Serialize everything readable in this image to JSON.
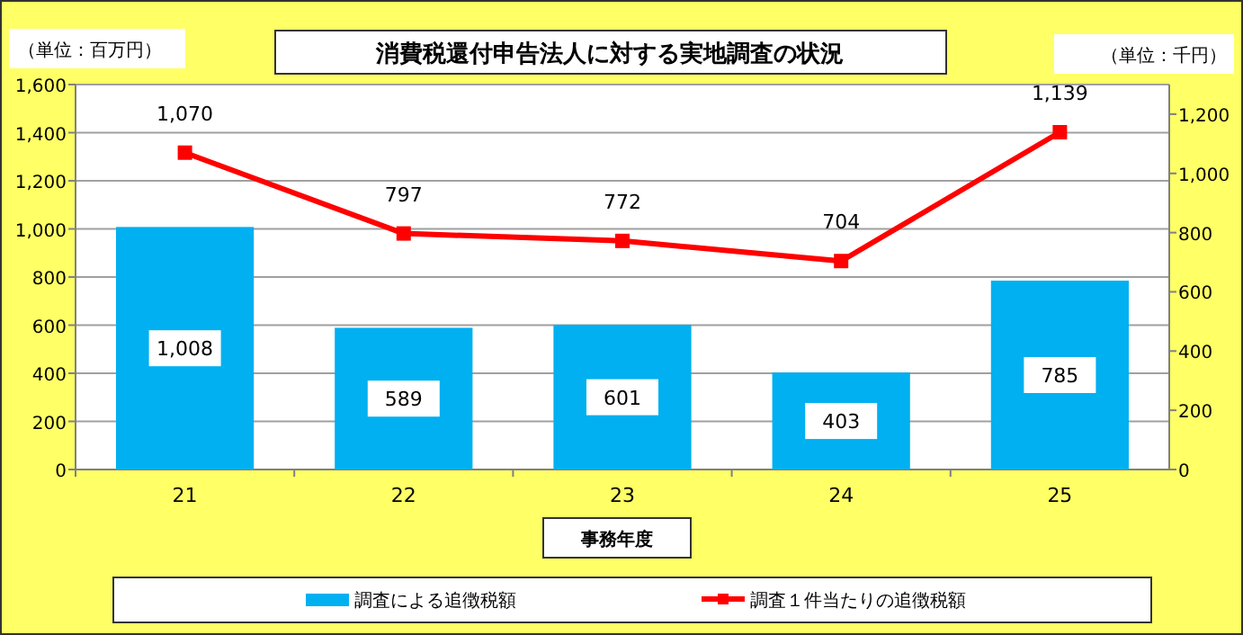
{
  "chart_data": {
    "type": "bar",
    "title": "消費税還付申告法人に対する実地調査の状況",
    "xlabel": "事務年度",
    "ylabel": "（単位：百万円）",
    "y2label": "（単位：千円）",
    "categories": [
      "21",
      "22",
      "23",
      "24",
      "25"
    ],
    "series": [
      {
        "name": "調査による追徴税額",
        "color": "#00b0f0",
        "values": [
          1008,
          589,
          601,
          403,
          785
        ],
        "value_labels": [
          "1,008",
          "589",
          "601",
          "403",
          "785"
        ]
      },
      {
        "name": "調査１件当たりの追徴税額",
        "type": "line",
        "axis": "y2",
        "color": "#ff0000",
        "values": [
          1070,
          797,
          772,
          704,
          1139
        ],
        "value_labels": [
          "1,070",
          "797",
          "772",
          "704",
          "1,139"
        ]
      }
    ],
    "ylim": [
      0,
      1600
    ],
    "yticks": [
      0,
      200,
      400,
      600,
      800,
      {
        "value": 1000,
        "label": "1,000"
      },
      {
        "value": 1200,
        "label": "1,200"
      },
      {
        "value": 1400,
        "label": "1,400"
      },
      {
        "value": 1600,
        "label": "1,600"
      }
    ],
    "y2lim": [
      0,
      1300
    ],
    "y2ticks": [
      0,
      200,
      400,
      600,
      800,
      {
        "value": 1000,
        "label": "1,000"
      },
      {
        "value": 1200,
        "label": "1,200"
      }
    ],
    "grid": "y",
    "legend": "bottom",
    "marker": "square"
  }
}
